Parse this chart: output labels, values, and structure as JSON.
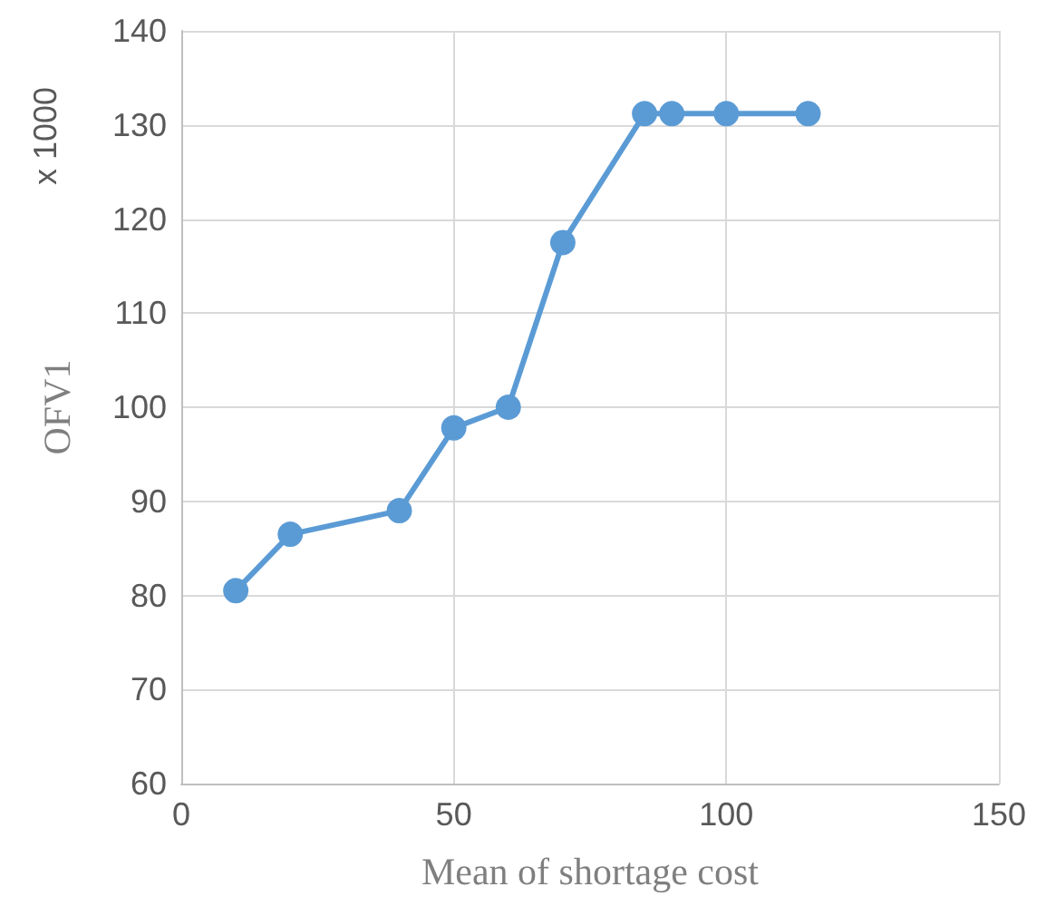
{
  "chart_data": {
    "type": "line",
    "xlabel": "Mean of shortage cost",
    "ylabel": "OFV1",
    "annotations": [
      "x 1000"
    ],
    "x": [
      10,
      20,
      40,
      50,
      60,
      70,
      85,
      90,
      100,
      115
    ],
    "series": [
      {
        "color": "#5b9bd5",
        "values": [
          80.5,
          86.5,
          89,
          97.8,
          100,
          117.5,
          131.2,
          131.2,
          131.2,
          131.2
        ]
      }
    ],
    "xlim": [
      0,
      150
    ],
    "xticks": [
      0,
      50,
      100,
      150
    ],
    "ylim": [
      60,
      140
    ],
    "yticks": [
      60,
      70,
      80,
      90,
      100,
      110,
      120,
      130,
      140
    ],
    "grid": true,
    "marker": "circle",
    "line_style": "solid"
  }
}
